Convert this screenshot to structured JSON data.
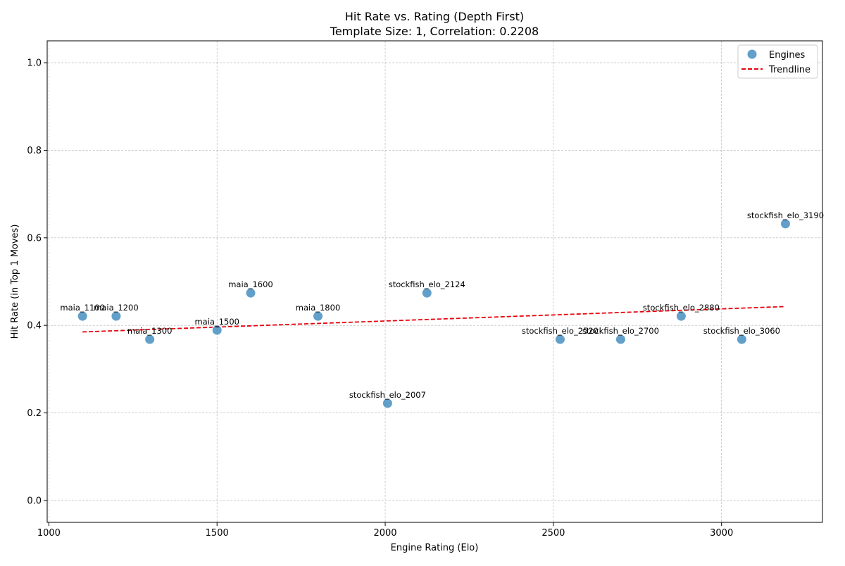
{
  "chart_data": {
    "type": "scatter",
    "title_line1": "Hit Rate vs. Rating (Depth First)",
    "title_line2": "Template Size: 1, Correlation: 0.2208",
    "xlabel": "Engine Rating (Elo)",
    "ylabel": "Hit Rate (in Top 1 Moves)",
    "xlim": [
      995,
      3300
    ],
    "ylim": [
      -0.05,
      1.05
    ],
    "xticks": [
      1000,
      1500,
      2000,
      2500,
      3000
    ],
    "xtick_labels": [
      "1000",
      "1500",
      "2000",
      "2500",
      "3000"
    ],
    "yticks": [
      0.0,
      0.2,
      0.4,
      0.6,
      0.8,
      1.0
    ],
    "ytick_labels": [
      "0.0",
      "0.2",
      "0.4",
      "0.6",
      "0.8",
      "1.0"
    ],
    "grid": true,
    "legend": {
      "position": "top-right",
      "entries": [
        "Engines",
        "Trendline"
      ]
    },
    "colors": {
      "points": "#1f77b4",
      "trendline": "#e8000b"
    },
    "series": [
      {
        "name": "Engines",
        "points": [
          {
            "label": "maia_1100",
            "x": 1100,
            "y": 0.421
          },
          {
            "label": "maia_1200",
            "x": 1200,
            "y": 0.421
          },
          {
            "label": "maia_1300",
            "x": 1300,
            "y": 0.368
          },
          {
            "label": "maia_1500",
            "x": 1500,
            "y": 0.389
          },
          {
            "label": "maia_1600",
            "x": 1600,
            "y": 0.474
          },
          {
            "label": "maia_1800",
            "x": 1800,
            "y": 0.421
          },
          {
            "label": "stockfish_elo_2007",
            "x": 2007,
            "y": 0.222
          },
          {
            "label": "stockfish_elo_2124",
            "x": 2124,
            "y": 0.474
          },
          {
            "label": "stockfish_elo_2520",
            "x": 2520,
            "y": 0.368
          },
          {
            "label": "stockfish_elo_2700",
            "x": 2700,
            "y": 0.368
          },
          {
            "label": "stockfish_elo_2880",
            "x": 2880,
            "y": 0.421
          },
          {
            "label": "stockfish_elo_3060",
            "x": 3060,
            "y": 0.368
          },
          {
            "label": "stockfish_elo_3190",
            "x": 3190,
            "y": 0.632
          }
        ]
      },
      {
        "name": "Trendline",
        "line": [
          {
            "x": 1100,
            "y": 0.385
          },
          {
            "x": 3190,
            "y": 0.443
          }
        ]
      }
    ]
  }
}
